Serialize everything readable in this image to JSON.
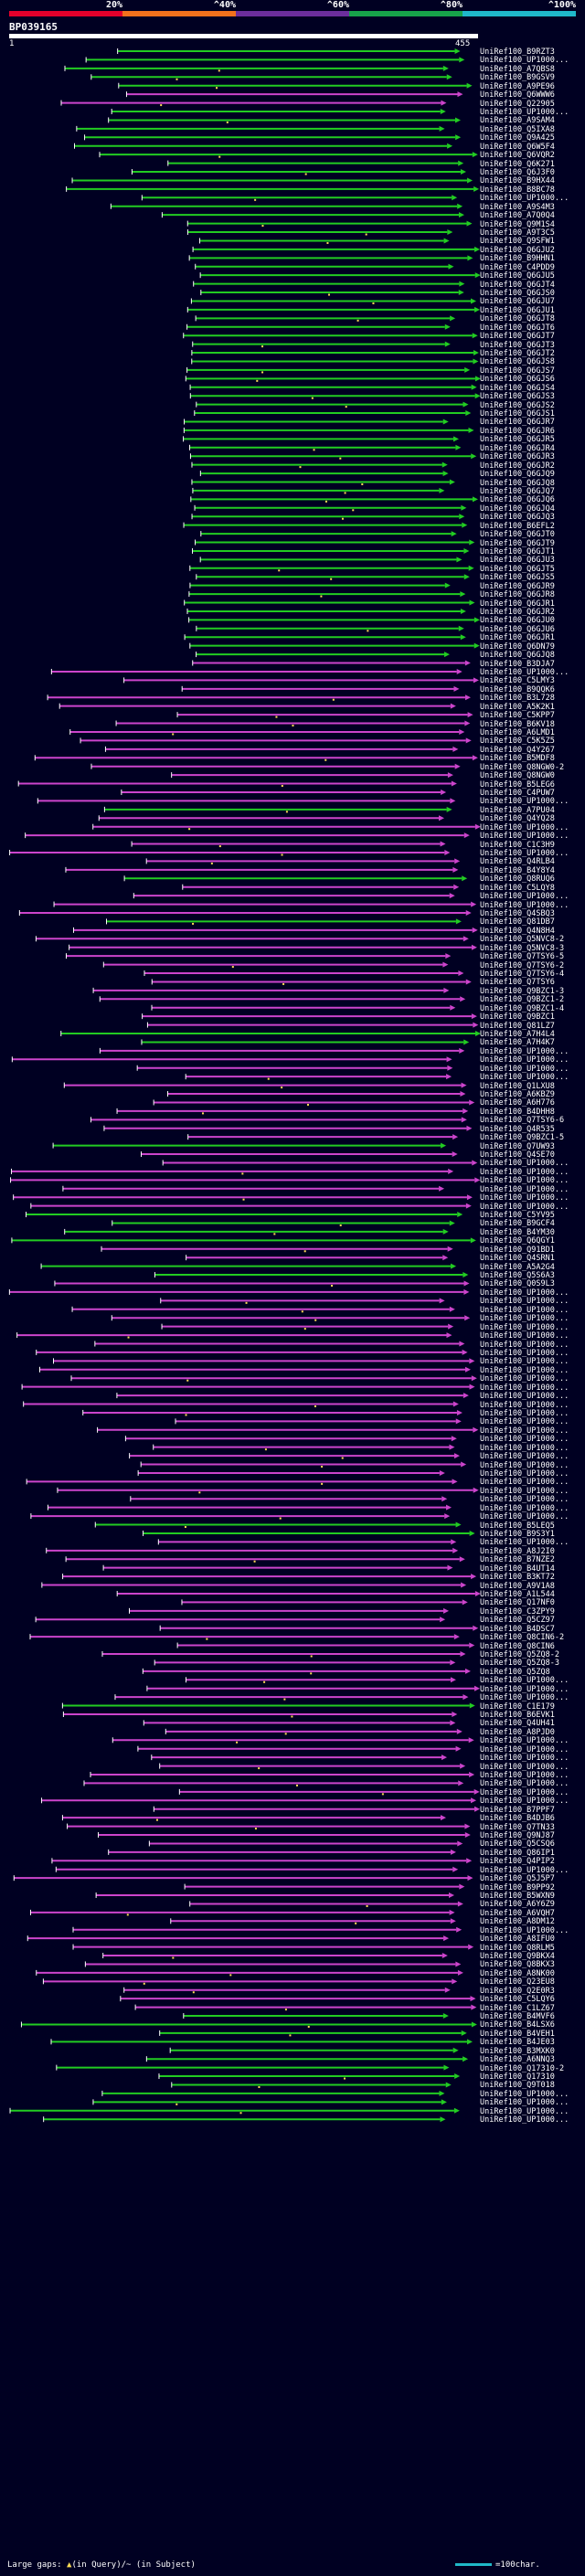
{
  "colors": {
    "background": "#000022",
    "scale_red": "#e4002b",
    "scale_orange": "#f2711c",
    "scale_purple": "#6c2e9c",
    "scale_green": "#17a34a",
    "scale_cyan": "#1fb8c9",
    "hit_green": "#22cc22",
    "hit_magenta": "#cc44cc",
    "gap_yellow": "#ffdd55",
    "query_white": "#ffffff"
  },
  "scale": {
    "labels": [
      "20%",
      "^40%",
      "^60%",
      "^80%",
      "^100%"
    ],
    "segment_colors": [
      "scale_red",
      "scale_orange",
      "scale_purple",
      "scale_green",
      "scale_cyan"
    ]
  },
  "query": {
    "id": "BP039165",
    "start": "1",
    "end": "455"
  },
  "hits": [
    {
      "label": "UniRef100_B9RZT3",
      "color": "green"
    },
    {
      "label": "UniRef100_UP1000...",
      "color": "green"
    },
    {
      "label": "UniRef100_A7QBS8",
      "color": "green"
    },
    {
      "label": "UniRef100_B9GSV9",
      "color": "green"
    },
    {
      "label": "UniRef100_A9PE96",
      "color": "green"
    },
    {
      "label": "UniRef100_Q6WWW6",
      "color": "magenta"
    },
    {
      "label": "UniRef100_Q22905",
      "color": "magenta"
    },
    {
      "label": "UniRef100_UP1000...",
      "color": "green"
    },
    {
      "label": "UniRef100_A9SAM4",
      "color": "green"
    },
    {
      "label": "UniRef100_Q5IXA8",
      "color": "green"
    },
    {
      "label": "UniRef100_Q9A425",
      "color": "green"
    },
    {
      "label": "UniRef100_Q6W5F4",
      "color": "green"
    },
    {
      "label": "UniRef100_Q6VQR2",
      "color": "green"
    },
    {
      "label": "UniRef100_Q6K271",
      "color": "green"
    },
    {
      "label": "UniRef100_Q6J3F0",
      "color": "green"
    },
    {
      "label": "UniRef100_B9HX44",
      "color": "green"
    },
    {
      "label": "UniRef100_B8BC78",
      "color": "green"
    },
    {
      "label": "UniRef100_UP1000...",
      "color": "green"
    },
    {
      "label": "UniRef100_A9S4M3",
      "color": "green"
    },
    {
      "label": "UniRef100_A7Q0Q4",
      "color": "green"
    },
    {
      "label": "UniRef100_Q9M1S4",
      "color": "green"
    },
    {
      "label": "UniRef100_A9T3C5",
      "color": "green"
    },
    {
      "label": "UniRef100_Q9SFW1",
      "color": "green"
    },
    {
      "label": "UniRef100_Q6GJU2",
      "color": "green"
    },
    {
      "label": "UniRef100_B9HHN1",
      "color": "green"
    },
    {
      "label": "UniRef100_C4PDD9",
      "color": "green"
    },
    {
      "label": "UniRef100_Q6GJU5",
      "color": "green"
    },
    {
      "label": "UniRef100_Q6GJT4",
      "color": "green"
    },
    {
      "label": "UniRef100_Q6GJS0",
      "color": "green"
    },
    {
      "label": "UniRef100_Q6GJU7",
      "color": "green"
    },
    {
      "label": "UniRef100_Q6GJU1",
      "color": "green"
    },
    {
      "label": "UniRef100_Q6GJT8",
      "color": "green"
    },
    {
      "label": "UniRef100_Q6GJT6",
      "color": "green"
    },
    {
      "label": "UniRef100_Q6GJT7",
      "color": "green"
    },
    {
      "label": "UniRef100_Q6GJT3",
      "color": "green"
    },
    {
      "label": "UniRef100_Q6GJT2",
      "color": "green"
    },
    {
      "label": "UniRef100_Q6GJS8",
      "color": "green"
    },
    {
      "label": "UniRef100_Q6GJS7",
      "color": "green"
    },
    {
      "label": "UniRef100_Q6GJS6",
      "color": "green"
    },
    {
      "label": "UniRef100_Q6GJS4",
      "color": "green"
    },
    {
      "label": "UniRef100_Q6GJS3",
      "color": "green"
    },
    {
      "label": "UniRef100_Q6GJS2",
      "color": "green"
    },
    {
      "label": "UniRef100_Q6GJS1",
      "color": "green"
    },
    {
      "label": "UniRef100_Q6GJR7",
      "color": "green"
    },
    {
      "label": "UniRef100_Q6GJR6",
      "color": "green"
    },
    {
      "label": "UniRef100_Q6GJR5",
      "color": "green"
    },
    {
      "label": "UniRef100_Q6GJR4",
      "color": "green"
    },
    {
      "label": "UniRef100_Q6GJR3",
      "color": "green"
    },
    {
      "label": "UniRef100_Q6GJR2",
      "color": "green"
    },
    {
      "label": "UniRef100_Q6GJQ9",
      "color": "green"
    },
    {
      "label": "UniRef100_Q6GJQ8",
      "color": "green"
    },
    {
      "label": "UniRef100_Q6GJQ7",
      "color": "green"
    },
    {
      "label": "UniRef100_Q6GJQ6",
      "color": "green"
    },
    {
      "label": "UniRef100_Q6GJQ4",
      "color": "green"
    },
    {
      "label": "UniRef100_Q6GJQ3",
      "color": "green"
    },
    {
      "label": "UniRef100_B6EFL2",
      "color": "green"
    },
    {
      "label": "UniRef100_Q6GJT0",
      "color": "green"
    },
    {
      "label": "UniRef100_Q6GJT9",
      "color": "green"
    },
    {
      "label": "UniRef100_Q6GJT1",
      "color": "green"
    },
    {
      "label": "UniRef100_Q6GJU3",
      "color": "green"
    },
    {
      "label": "UniRef100_Q6GJT5",
      "color": "green"
    },
    {
      "label": "UniRef100_Q6GJS5",
      "color": "green"
    },
    {
      "label": "UniRef100_Q6GJR9",
      "color": "green"
    },
    {
      "label": "UniRef100_Q6GJR8",
      "color": "green"
    },
    {
      "label": "UniRef100_Q6GJR1",
      "color": "green"
    },
    {
      "label": "UniRef100_Q6GJR2",
      "color": "green"
    },
    {
      "label": "UniRef100_Q6GJU0",
      "color": "green"
    },
    {
      "label": "UniRef100_Q6GJU6",
      "color": "green"
    },
    {
      "label": "UniRef100_Q6GJR1",
      "color": "green"
    },
    {
      "label": "UniRef100_Q6DN79",
      "color": "green"
    },
    {
      "label": "UniRef100_Q6GJQ8",
      "color": "green"
    },
    {
      "label": "UniRef100_B3DJA7",
      "color": "magenta"
    },
    {
      "label": "UniRef100_UP1000...",
      "color": "magenta"
    },
    {
      "label": "UniRef100_C5LMY3",
      "color": "magenta"
    },
    {
      "label": "UniRef100_B9QQK6",
      "color": "magenta"
    },
    {
      "label": "UniRef100_B3L728",
      "color": "magenta"
    },
    {
      "label": "UniRef100_A5K2K1",
      "color": "magenta"
    },
    {
      "label": "UniRef100_C5KPP7",
      "color": "magenta"
    },
    {
      "label": "UniRef100_B6KV18",
      "color": "magenta"
    },
    {
      "label": "UniRef100_A6LMD1",
      "color": "magenta"
    },
    {
      "label": "UniRef100_C5K5Z5",
      "color": "magenta"
    },
    {
      "label": "UniRef100_Q4Y267",
      "color": "magenta"
    },
    {
      "label": "UniRef100_B5MDF8",
      "color": "magenta"
    },
    {
      "label": "UniRef100_Q8NGW0-2",
      "color": "magenta"
    },
    {
      "label": "UniRef100_Q8NGW0",
      "color": "magenta"
    },
    {
      "label": "UniRef100_B5LEG6",
      "color": "magenta"
    },
    {
      "label": "UniRef100_C4PUW7",
      "color": "magenta"
    },
    {
      "label": "UniRef100_UP1000...",
      "color": "magenta"
    },
    {
      "label": "UniRef100_A7PU04",
      "color": "green"
    },
    {
      "label": "UniRef100_Q4YQ28",
      "color": "magenta"
    },
    {
      "label": "UniRef100_UP1000...",
      "color": "magenta"
    },
    {
      "label": "UniRef100_UP1000...",
      "color": "magenta"
    },
    {
      "label": "UniRef100_C1C3H9",
      "color": "magenta"
    },
    {
      "label": "UniRef100_UP1000...",
      "color": "magenta"
    },
    {
      "label": "UniRef100_Q4RLB4",
      "color": "magenta"
    },
    {
      "label": "UniRef100_B4Y8Y4",
      "color": "magenta"
    },
    {
      "label": "UniRef100_Q8RUQ6",
      "color": "green"
    },
    {
      "label": "UniRef100_C5LQY8",
      "color": "magenta"
    },
    {
      "label": "UniRef100_UP1000...",
      "color": "magenta"
    },
    {
      "label": "UniRef100_UP1000...",
      "color": "magenta"
    },
    {
      "label": "UniRef100_Q4SBQ3",
      "color": "magenta"
    },
    {
      "label": "UniRef100_Q81DB7",
      "color": "green"
    },
    {
      "label": "UniRef100_Q4N8H4",
      "color": "magenta"
    },
    {
      "label": "UniRef100_Q5NVC8-2",
      "color": "magenta"
    },
    {
      "label": "UniRef100_Q5NVC8-3",
      "color": "magenta"
    },
    {
      "label": "UniRef100_Q7TSY6-5",
      "color": "magenta"
    },
    {
      "label": "UniRef100_Q7TSY6-2",
      "color": "magenta"
    },
    {
      "label": "UniRef100_Q7TSY6-4",
      "color": "magenta"
    },
    {
      "label": "UniRef100_Q7TSY6",
      "color": "magenta"
    },
    {
      "label": "UniRef100_Q9BZC1-3",
      "color": "magenta"
    },
    {
      "label": "UniRef100_Q9BZC1-2",
      "color": "magenta"
    },
    {
      "label": "UniRef100_Q9BZC1-4",
      "color": "magenta"
    },
    {
      "label": "UniRef100_Q9BZC1",
      "color": "magenta"
    },
    {
      "label": "UniRef100_Q81LZ7",
      "color": "magenta"
    },
    {
      "label": "UniRef100_A7H4L4",
      "color": "green"
    },
    {
      "label": "UniRef100_A7H4K7",
      "color": "green"
    },
    {
      "label": "UniRef100_UP1000...",
      "color": "magenta"
    },
    {
      "label": "UniRef100_UP1000...",
      "color": "magenta"
    },
    {
      "label": "UniRef100_UP1000...",
      "color": "magenta"
    },
    {
      "label": "UniRef100_UP1000...",
      "color": "magenta"
    },
    {
      "label": "UniRef100_Q1LXU8",
      "color": "magenta"
    },
    {
      "label": "UniRef100_A6KBZ9",
      "color": "magenta"
    },
    {
      "label": "UniRef100_A6H776",
      "color": "magenta"
    },
    {
      "label": "UniRef100_B4DHH8",
      "color": "magenta"
    },
    {
      "label": "UniRef100_Q7TSY6-6",
      "color": "magenta"
    },
    {
      "label": "UniRef100_Q4R535",
      "color": "magenta"
    },
    {
      "label": "UniRef100_Q9BZC1-5",
      "color": "magenta"
    },
    {
      "label": "UniRef100_Q7UW93",
      "color": "green"
    },
    {
      "label": "UniRef100_Q4SE70",
      "color": "magenta"
    },
    {
      "label": "UniRef100_UP1000...",
      "color": "magenta"
    },
    {
      "label": "UniRef100_UP1000...",
      "color": "magenta"
    },
    {
      "label": "UniRef100_UP1000...",
      "color": "magenta"
    },
    {
      "label": "UniRef100_UP1000...",
      "color": "magenta"
    },
    {
      "label": "UniRef100_UP1000...",
      "color": "magenta"
    },
    {
      "label": "UniRef100_UP1000...",
      "color": "magenta"
    },
    {
      "label": "UniRef100_C5YV95",
      "color": "green"
    },
    {
      "label": "UniRef100_B9GCF4",
      "color": "green"
    },
    {
      "label": "UniRef100_B4YM30",
      "color": "green"
    },
    {
      "label": "UniRef100_Q6QGY1",
      "color": "green"
    },
    {
      "label": "UniRef100_Q91BD1",
      "color": "magenta"
    },
    {
      "label": "UniRef100_Q4SRN1",
      "color": "magenta"
    },
    {
      "label": "UniRef100_A5A2G4",
      "color": "green"
    },
    {
      "label": "UniRef100_Q5S6A3",
      "color": "green"
    },
    {
      "label": "UniRef100_Q0S9L3",
      "color": "magenta"
    },
    {
      "label": "UniRef100_UP1000...",
      "color": "magenta"
    },
    {
      "label": "UniRef100_UP1000...",
      "color": "magenta"
    },
    {
      "label": "UniRef100_UP1000...",
      "color": "magenta"
    },
    {
      "label": "UniRef100_UP1000...",
      "color": "magenta"
    },
    {
      "label": "UniRef100_UP1000...",
      "color": "magenta"
    },
    {
      "label": "UniRef100_UP1000...",
      "color": "magenta"
    },
    {
      "label": "UniRef100_UP1000...",
      "color": "magenta"
    },
    {
      "label": "UniRef100_UP1000...",
      "color": "magenta"
    },
    {
      "label": "UniRef100_UP1000...",
      "color": "magenta"
    },
    {
      "label": "UniRef100_UP1000...",
      "color": "magenta"
    },
    {
      "label": "UniRef100_UP1000...",
      "color": "magenta"
    },
    {
      "label": "UniRef100_UP1000...",
      "color": "magenta"
    },
    {
      "label": "UniRef100_UP1000...",
      "color": "magenta"
    },
    {
      "label": "UniRef100_UP1000...",
      "color": "magenta"
    },
    {
      "label": "UniRef100_UP1000...",
      "color": "magenta"
    },
    {
      "label": "UniRef100_UP1000...",
      "color": "magenta"
    },
    {
      "label": "UniRef100_UP1000...",
      "color": "magenta"
    },
    {
      "label": "UniRef100_UP1000...",
      "color": "magenta"
    },
    {
      "label": "UniRef100_UP1000...",
      "color": "magenta"
    },
    {
      "label": "UniRef100_UP1000...",
      "color": "magenta"
    },
    {
      "label": "UniRef100_UP1000...",
      "color": "magenta"
    },
    {
      "label": "UniRef100_UP1000...",
      "color": "magenta"
    },
    {
      "label": "UniRef100_UP1000...",
      "color": "magenta"
    },
    {
      "label": "UniRef100_UP1000...",
      "color": "magenta"
    },
    {
      "label": "UniRef100_UP1000...",
      "color": "magenta"
    },
    {
      "label": "UniRef100_UP1000...",
      "color": "magenta"
    },
    {
      "label": "UniRef100_UP1000...",
      "color": "magenta"
    },
    {
      "label": "UniRef100_B5LEQ5",
      "color": "green"
    },
    {
      "label": "UniRef100_B9S3Y1",
      "color": "green"
    },
    {
      "label": "UniRef100_UP1000...",
      "color": "magenta"
    },
    {
      "label": "UniRef100_A8J2I0",
      "color": "magenta"
    },
    {
      "label": "UniRef100_B7NZE2",
      "color": "magenta"
    },
    {
      "label": "UniRef100_B4UT14",
      "color": "magenta"
    },
    {
      "label": "UniRef100_B3KT72",
      "color": "magenta"
    },
    {
      "label": "UniRef100_A9V1A8",
      "color": "magenta"
    },
    {
      "label": "UniRef100_A1L544",
      "color": "magenta"
    },
    {
      "label": "UniRef100_Q17NF0",
      "color": "magenta"
    },
    {
      "label": "UniRef100_C3ZPY9",
      "color": "magenta"
    },
    {
      "label": "UniRef100_Q5CZ97",
      "color": "magenta"
    },
    {
      "label": "UniRef100_B4DSC7",
      "color": "magenta"
    },
    {
      "label": "UniRef100_Q8CIN6-2",
      "color": "magenta"
    },
    {
      "label": "UniRef100_Q8CIN6",
      "color": "magenta"
    },
    {
      "label": "UniRef100_Q5ZQ8-2",
      "color": "magenta"
    },
    {
      "label": "UniRef100_Q5ZQ8-3",
      "color": "magenta"
    },
    {
      "label": "UniRef100_Q5ZQ8",
      "color": "magenta"
    },
    {
      "label": "UniRef100_UP1000...",
      "color": "magenta"
    },
    {
      "label": "UniRef100_UP1000...",
      "color": "magenta"
    },
    {
      "label": "UniRef100_UP1000...",
      "color": "magenta"
    },
    {
      "label": "UniRef100_C1E179",
      "color": "green"
    },
    {
      "label": "UniRef100_B6EVK1",
      "color": "magenta"
    },
    {
      "label": "UniRef100_Q4UH41",
      "color": "magenta"
    },
    {
      "label": "UniRef100_A8PJD0",
      "color": "magenta"
    },
    {
      "label": "UniRef100_UP1000...",
      "color": "magenta"
    },
    {
      "label": "UniRef100_UP1000...",
      "color": "magenta"
    },
    {
      "label": "UniRef100_UP1000...",
      "color": "magenta"
    },
    {
      "label": "UniRef100_UP1000...",
      "color": "magenta"
    },
    {
      "label": "UniRef100_UP1000...",
      "color": "magenta"
    },
    {
      "label": "UniRef100_UP1000...",
      "color": "magenta"
    },
    {
      "label": "UniRef100_UP1000...",
      "color": "magenta"
    },
    {
      "label": "UniRef100_UP1000...",
      "color": "magenta"
    },
    {
      "label": "UniRef100_B7PPF7",
      "color": "magenta"
    },
    {
      "label": "UniRef100_B4DJB6",
      "color": "magenta"
    },
    {
      "label": "UniRef100_Q7TN33",
      "color": "magenta"
    },
    {
      "label": "UniRef100_Q9NJ87",
      "color": "magenta"
    },
    {
      "label": "UniRef100_Q5CSQ6",
      "color": "magenta"
    },
    {
      "label": "UniRef100_Q86IP1",
      "color": "magenta"
    },
    {
      "label": "UniRef100_Q4PIP2",
      "color": "magenta"
    },
    {
      "label": "UniRef100_UP1000...",
      "color": "magenta"
    },
    {
      "label": "UniRef100_Q5J5P7",
      "color": "magenta"
    },
    {
      "label": "UniRef100_B9PP92",
      "color": "magenta"
    },
    {
      "label": "UniRef100_B5WXN9",
      "color": "magenta"
    },
    {
      "label": "UniRef100_A6Y6Z9",
      "color": "magenta"
    },
    {
      "label": "UniRef100_A6VQH7",
      "color": "magenta"
    },
    {
      "label": "UniRef100_A8DM12",
      "color": "magenta"
    },
    {
      "label": "UniRef100_UP1000...",
      "color": "magenta"
    },
    {
      "label": "UniRef100_A8IFU0",
      "color": "magenta"
    },
    {
      "label": "UniRef100_Q8RLM5",
      "color": "magenta"
    },
    {
      "label": "UniRef100_Q9BKX4",
      "color": "magenta"
    },
    {
      "label": "UniRef100_Q8BKX3",
      "color": "magenta"
    },
    {
      "label": "UniRef100_A8NK00",
      "color": "magenta"
    },
    {
      "label": "UniRef100_Q23EU8",
      "color": "magenta"
    },
    {
      "label": "UniRef100_Q2E0R3",
      "color": "magenta"
    },
    {
      "label": "UniRef100_C5LQY6",
      "color": "magenta"
    },
    {
      "label": "UniRef100_C1LZ67",
      "color": "magenta"
    },
    {
      "label": "UniRef100_B4MVF6",
      "color": "green"
    },
    {
      "label": "UniRef100_B4LSX6",
      "color": "green"
    },
    {
      "label": "UniRef100_B4VEH1",
      "color": "green"
    },
    {
      "label": "UniRef100_B4JE03",
      "color": "green"
    },
    {
      "label": "UniRef100_B3MXK0",
      "color": "green"
    },
    {
      "label": "UniRef100_A6NNQ3",
      "color": "green"
    },
    {
      "label": "UniRef100_Q17310-2",
      "color": "green"
    },
    {
      "label": "UniRef100_Q17310",
      "color": "green"
    },
    {
      "label": "UniRef100_Q9T018",
      "color": "green"
    },
    {
      "label": "UniRef100_UP1000...",
      "color": "green"
    },
    {
      "label": "UniRef100_UP1000...",
      "color": "green"
    },
    {
      "label": "UniRef100_UP1000...",
      "color": "green"
    },
    {
      "label": "UniRef100_UP1000...",
      "color": "green"
    }
  ],
  "footer": {
    "large_gaps_label": "Large gaps:",
    "in_query_label": "(in Query)",
    "separator": "/~",
    "in_subject_label": "(in Subject)",
    "scale_note": "=100char."
  }
}
